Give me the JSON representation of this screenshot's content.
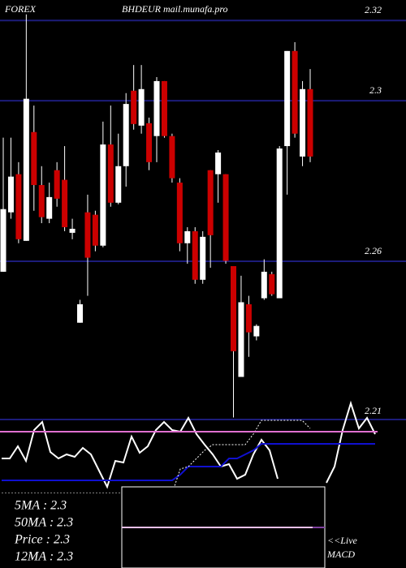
{
  "chart_data": {
    "type": "candlestick",
    "title": "FOREX",
    "subtitle": "BHDEUR mail.munafa.pro",
    "open": [
      2.2574,
      2.2722,
      2.2817,
      2.2651,
      2.2922,
      2.279,
      2.2706,
      2.2827,
      2.2803,
      2.2671,
      2.2447,
      2.2722,
      2.2716,
      2.2639,
      2.2891,
      2.2746,
      2.2837,
      2.3025,
      2.2938,
      2.2944,
      2.2912,
      2.3049,
      2.2912,
      2.2796,
      2.2645,
      2.2675,
      2.2554,
      2.2827,
      2.2817,
      2.2817,
      2.2588,
      2.2312,
      2.2493,
      2.2413,
      2.2508,
      2.2568,
      2.2508,
      2.2887,
      2.3124,
      2.2861,
      2.3029
    ],
    "high": [
      2.2908,
      2.2908,
      2.2847,
      2.3215,
      2.2988,
      2.2837,
      2.2796,
      2.2847,
      2.2887,
      2.2706,
      2.2504,
      2.2766,
      2.2726,
      2.2948,
      2.2988,
      2.2918,
      2.3019,
      2.3089,
      2.3089,
      2.2958,
      2.3059,
      2.3049,
      2.2918,
      2.2807,
      2.2685,
      2.2685,
      2.2675,
      2.2827,
      2.2877,
      2.2817,
      2.2588,
      2.2564,
      2.2514,
      2.2443,
      2.2605,
      2.2574,
      2.2887,
      2.3124,
      2.3146,
      2.3049,
      2.3079
    ],
    "low": [
      2.2574,
      2.2706,
      2.2645,
      2.2651,
      2.2726,
      2.2695,
      2.2695,
      2.2736,
      2.2675,
      2.2655,
      2.2447,
      2.2514,
      2.2625,
      2.2635,
      2.2736,
      2.2742,
      2.2786,
      2.2928,
      2.2918,
      2.2827,
      2.2847,
      2.2908,
      2.2796,
      2.2625,
      2.2594,
      2.2544,
      2.2544,
      2.2584,
      2.2746,
      2.2594,
      2.2211,
      2.2312,
      2.2362,
      2.2403,
      2.2504,
      2.2514,
      2.2508,
      2.2766,
      2.2908,
      2.2837,
      2.2847
    ],
    "close": [
      2.273,
      2.2811,
      2.2655,
      2.3005,
      2.279,
      2.271,
      2.276,
      2.2756,
      2.2685,
      2.2681,
      2.2493,
      2.2609,
      2.2639,
      2.2891,
      2.2746,
      2.2837,
      2.2992,
      2.2942,
      2.3029,
      2.2847,
      2.3049,
      2.2912,
      2.2807,
      2.2645,
      2.2675,
      2.2554,
      2.2661,
      2.2665,
      2.2871,
      2.2601,
      2.2376,
      2.2498,
      2.2423,
      2.2439,
      2.2574,
      2.2518,
      2.2881,
      2.3124,
      2.2918,
      2.3029,
      2.2861
    ],
    "up_color": "#ffffff",
    "down_color": "#cc0000",
    "ylim": [
      2.222,
      2.3251
    ],
    "yticks": [
      2.32,
      2.3,
      2.26
    ],
    "grid": true,
    "grid_color": "#1c1c7a",
    "indicator": {
      "label": "2.21",
      "ylim": [
        0,
        120
      ],
      "lines": [
        {
          "color": "#ffffff",
          "values": [
            45,
            45,
            60,
            42,
            80,
            90,
            53,
            45,
            50,
            47,
            58,
            50,
            30,
            10,
            42,
            40,
            72,
            52,
            60,
            80,
            90,
            80,
            78,
            95,
            75,
            62,
            50,
            35,
            38,
            20,
            25,
            50,
            68,
            55,
            20,
            null,
            null,
            null,
            null,
            null,
            15,
            35,
            80,
            113,
            82,
            95,
            75
          ]
        },
        {
          "color": "#1010d0",
          "values": [
            18,
            18,
            18,
            18,
            18,
            18,
            18,
            18,
            18,
            18,
            18,
            18,
            18,
            18,
            18,
            18,
            18,
            18,
            18,
            18,
            18,
            18,
            25,
            35,
            35,
            35,
            35,
            35,
            45,
            45,
            50,
            55,
            63,
            63,
            63,
            63,
            63,
            63,
            63,
            63,
            63,
            63,
            63,
            63,
            63,
            63,
            63
          ]
        },
        {
          "color": "#ffffff",
          "dashed": true,
          "values": [
            2,
            2,
            2,
            2,
            2,
            2,
            2,
            2,
            2,
            2,
            2,
            2,
            2,
            2,
            2,
            2,
            2,
            2,
            2,
            2,
            2,
            2,
            32,
            35,
            45,
            55,
            62,
            62,
            62,
            62,
            62,
            75,
            92,
            92,
            92,
            92,
            92,
            92,
            82,
            null,
            null,
            null,
            null,
            null,
            null,
            null,
            null
          ]
        }
      ],
      "level": 78,
      "level_color": "#e070d0"
    },
    "ma_labels": [
      "5MA : 2.3",
      "50MA : 2.3",
      "Price : 2.3",
      "12MA : 2.3"
    ],
    "live": "<<Live",
    "macd": "MACD"
  }
}
